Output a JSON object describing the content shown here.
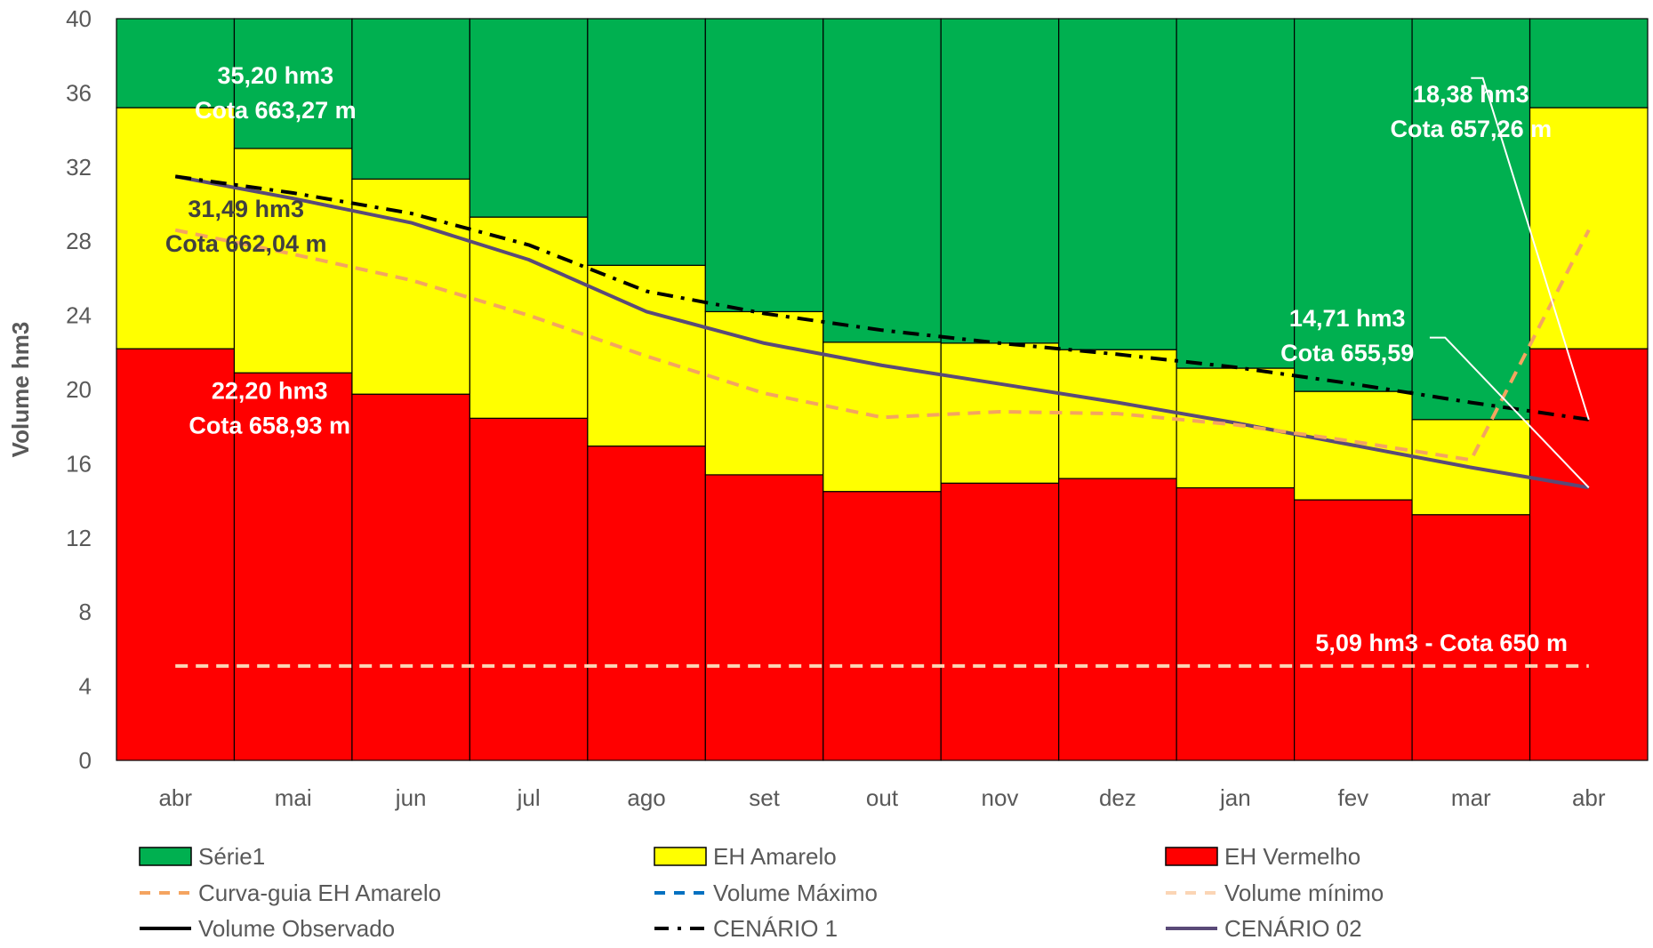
{
  "chart_data": {
    "type": "bar",
    "ylabel": "Volume hm3",
    "ylim": [
      0,
      40
    ],
    "yticks": [
      0,
      4,
      8,
      12,
      16,
      20,
      24,
      28,
      32,
      36,
      40
    ],
    "categories": [
      "abr",
      "mai",
      "jun",
      "jul",
      "ago",
      "set",
      "out",
      "nov",
      "dez",
      "jan",
      "fev",
      "mar",
      "abr"
    ],
    "stacked_series": [
      {
        "name": "EH Vermelho",
        "color": "#ff0000",
        "values": [
          22.2,
          20.9,
          19.75,
          18.45,
          16.95,
          15.4,
          14.5,
          14.95,
          15.2,
          14.7,
          14.05,
          13.25,
          22.2
        ]
      },
      {
        "name": "EH Amarelo",
        "color": "#ffff00",
        "values": [
          13.0,
          12.1,
          11.6,
          10.85,
          9.75,
          8.8,
          8.05,
          7.55,
          6.95,
          6.45,
          5.85,
          5.13,
          13.0
        ]
      },
      {
        "name": "Série1",
        "color": "#00b050",
        "values": [
          4.8,
          7.0,
          8.65,
          10.7,
          13.3,
          15.8,
          17.45,
          17.5,
          17.85,
          18.85,
          20.1,
          21.62,
          4.8
        ]
      }
    ],
    "line_series": [
      {
        "name": "CENÁRIO 02",
        "color": "#5a4a78",
        "style": "solid",
        "values": [
          31.49,
          30.3,
          29.0,
          27.0,
          24.2,
          22.5,
          21.3,
          20.3,
          19.3,
          18.2,
          17.0,
          15.8,
          14.71
        ]
      },
      {
        "name": "CENÁRIO 1",
        "color": "#000000",
        "style": "dashdot",
        "values": [
          31.49,
          30.6,
          29.5,
          27.8,
          25.3,
          24.1,
          23.2,
          22.5,
          21.9,
          21.2,
          20.3,
          19.3,
          18.38
        ]
      },
      {
        "name": "Curva-guia EH Amarelo",
        "color": "#f4a460",
        "style": "dash",
        "values": [
          28.6,
          27.3,
          25.9,
          24.0,
          21.8,
          19.8,
          18.5,
          18.8,
          18.7,
          18.1,
          17.2,
          16.2,
          28.6
        ]
      },
      {
        "name": "Volume mínimo",
        "color": "#fbd5b5",
        "style": "dash",
        "values": [
          5.09,
          5.09,
          5.09,
          5.09,
          5.09,
          5.09,
          5.09,
          5.09,
          5.09,
          5.09,
          5.09,
          5.09,
          5.09
        ]
      }
    ],
    "annotations": [
      {
        "lines": [
          "35,20 hm3",
          "Cota 663,27 m"
        ],
        "color": "#ffffff",
        "x_index": 0.85,
        "y_value": 36.5
      },
      {
        "lines": [
          "31,49 hm3",
          "Cota 662,04 m"
        ],
        "color": "#404040",
        "x_index": 0.6,
        "y_value": 29.3
      },
      {
        "lines": [
          "22,20 hm3",
          "Cota 658,93 m"
        ],
        "color": "#ffffff",
        "x_index": 0.8,
        "y_value": 19.5
      },
      {
        "lines": [
          "18,38 hm3",
          "Cota 657,26 m"
        ],
        "color": "#ffffff",
        "x_index": 11.0,
        "y_value": 35.5
      },
      {
        "lines": [
          "14,71 hm3",
          "Cota 655,59"
        ],
        "color": "#ffffff",
        "x_index": 9.95,
        "y_value": 23.4
      },
      {
        "lines": [
          "5,09 hm3 - Cota 650 m"
        ],
        "color": "#ffffff",
        "x_index": 10.75,
        "y_value": 5.9
      }
    ],
    "callouts": [
      {
        "from_x_index": 11.0,
        "from_y_value": 36.8,
        "mid_x_index": 11.1,
        "mid_y_value": 36.8,
        "to_x_index": 12.0,
        "to_y_value": 18.38
      },
      {
        "from_x_index": 10.65,
        "from_y_value": 22.8,
        "mid_x_index": 10.78,
        "mid_y_value": 22.8,
        "to_x_index": 12.0,
        "to_y_value": 14.71
      }
    ],
    "legend": [
      {
        "label": "Série1",
        "kind": "box",
        "color": "#00b050"
      },
      {
        "label": "EH Amarelo",
        "kind": "box",
        "color": "#ffff00"
      },
      {
        "label": "EH Vermelho",
        "kind": "box",
        "color": "#ff0000"
      },
      {
        "label": "Curva-guia EH Amarelo",
        "kind": "dash",
        "color": "#f4a460"
      },
      {
        "label": "Volume Máximo",
        "kind": "dash",
        "color": "#0070c0"
      },
      {
        "label": "Volume mínimo",
        "kind": "dash",
        "color": "#fbd5b5"
      },
      {
        "label": "Volume Observado",
        "kind": "solid",
        "color": "#000000"
      },
      {
        "label": "CENÁRIO 1",
        "kind": "dashdot",
        "color": "#000000"
      },
      {
        "label": "CENÁRIO 02",
        "kind": "solid",
        "color": "#5a4a78"
      }
    ]
  }
}
